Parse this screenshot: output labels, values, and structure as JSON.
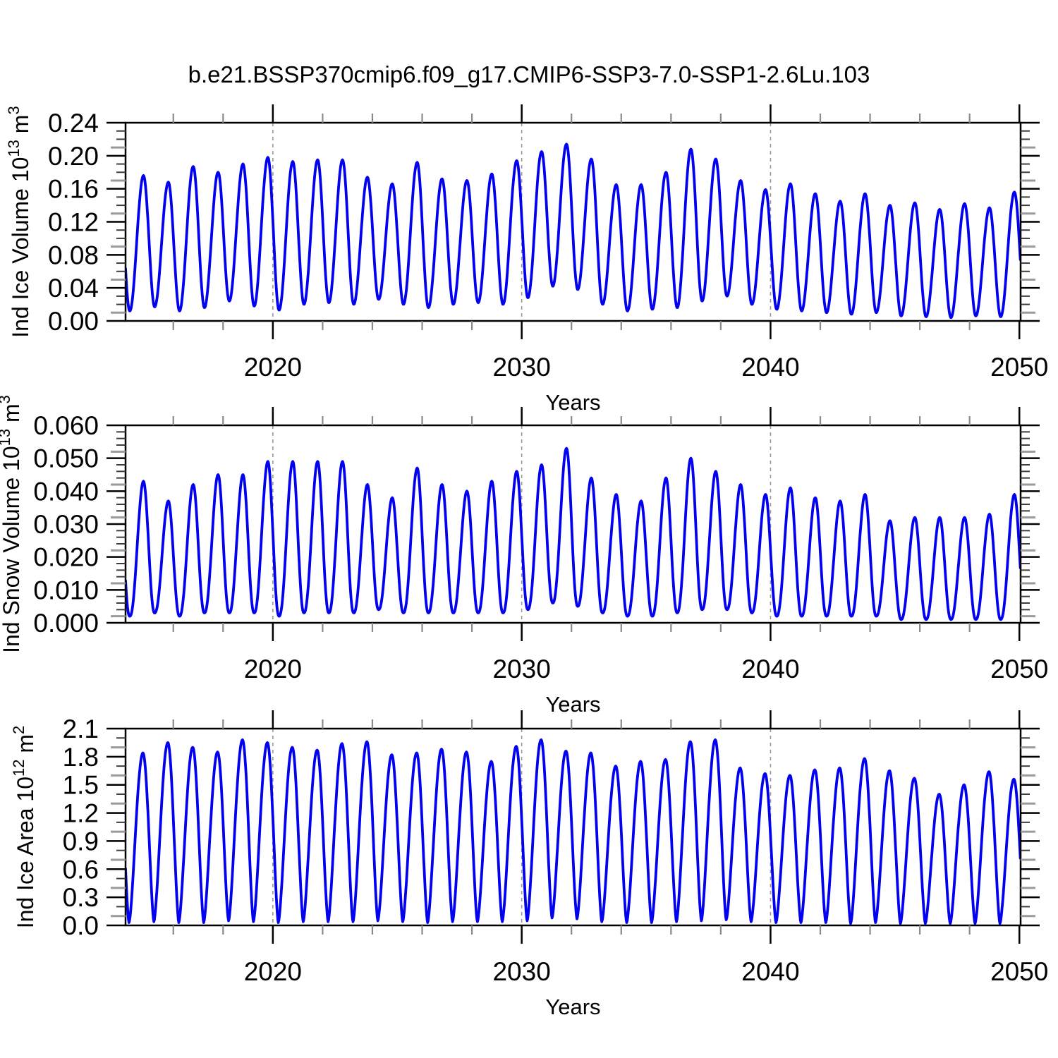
{
  "title": "b.e21.BSSP370cmip6.f09_g17.CMIP6-SSP3-7.0-SSP1-2.6Lu.103",
  "xlabel": "Years",
  "x_ticks": [
    "2020",
    "2030",
    "2040",
    "2050"
  ],
  "x_tick_values": [
    2020,
    2030,
    2040,
    2050
  ],
  "x_minor_step": 2,
  "gridline_years": [
    2020,
    2030,
    2040
  ],
  "colors": {
    "line": "#0202f0",
    "frame": "#000000",
    "minor_tick": "#3c3c3c",
    "gray_tick": "#9a9a9a",
    "x_minor_tick": "#8a8a8a",
    "gridline": "#999999",
    "text": "#000000"
  },
  "chart_data": [
    {
      "id": "ice-volume",
      "type": "line",
      "ylabel_plain": "Ind Ice Volume 10^13 m^3",
      "ylabel_parts": [
        {
          "t": "Ind Ice Volume 10",
          "sup": false
        },
        {
          "t": "13",
          "sup": true
        },
        {
          "t": " m",
          "sup": false
        },
        {
          "t": "3",
          "sup": true
        }
      ],
      "y_tick_labels": [
        "0.00",
        "0.04",
        "0.08",
        "0.12",
        "0.16",
        "0.20",
        "0.24"
      ],
      "ylim": [
        0.0,
        0.24
      ],
      "y_major": 0.04,
      "y_minor": 0.01,
      "xlim": [
        2014.08,
        2050.05
      ],
      "first_year": 2014,
      "peak_phase": 0.8,
      "min_phase": 0.25,
      "shape": 1.0,
      "peaks": [
        0.176,
        0.168,
        0.187,
        0.18,
        0.19,
        0.198,
        0.193,
        0.195,
        0.195,
        0.174,
        0.166,
        0.192,
        0.172,
        0.17,
        0.178,
        0.194,
        0.205,
        0.214,
        0.196,
        0.165,
        0.165,
        0.18,
        0.208,
        0.196,
        0.17,
        0.159,
        0.166,
        0.154,
        0.145,
        0.154,
        0.14,
        0.143,
        0.135,
        0.142,
        0.137,
        0.156
      ],
      "mins": [
        0.012,
        0.017,
        0.012,
        0.016,
        0.024,
        0.018,
        0.013,
        0.02,
        0.022,
        0.02,
        0.026,
        0.02,
        0.016,
        0.02,
        0.022,
        0.02,
        0.028,
        0.042,
        0.038,
        0.02,
        0.012,
        0.014,
        0.016,
        0.024,
        0.03,
        0.02,
        0.014,
        0.012,
        0.01,
        0.008,
        0.01,
        0.006,
        0.005,
        0.004,
        0.006,
        0.005,
        0.008
      ]
    },
    {
      "id": "snow-volume",
      "type": "line",
      "ylabel_plain": "Ind Snow Volume 10^13 m^3",
      "ylabel_parts": [
        {
          "t": "Ind Snow Volume 10",
          "sup": false
        },
        {
          "t": "13",
          "sup": true
        },
        {
          "t": " m",
          "sup": false
        },
        {
          "t": "3",
          "sup": true
        }
      ],
      "y_tick_labels": [
        "0.000",
        "0.010",
        "0.020",
        "0.030",
        "0.040",
        "0.050",
        "0.060"
      ],
      "ylim": [
        0.0,
        0.06
      ],
      "y_major": 0.01,
      "y_minor": 0.002,
      "xlim": [
        2014.08,
        2050.05
      ],
      "first_year": 2014,
      "peak_phase": 0.8,
      "min_phase": 0.25,
      "shape": 1.15,
      "peaks": [
        0.043,
        0.037,
        0.042,
        0.045,
        0.045,
        0.049,
        0.049,
        0.049,
        0.049,
        0.042,
        0.038,
        0.047,
        0.042,
        0.04,
        0.043,
        0.046,
        0.048,
        0.053,
        0.044,
        0.039,
        0.037,
        0.044,
        0.05,
        0.046,
        0.042,
        0.039,
        0.041,
        0.038,
        0.037,
        0.039,
        0.031,
        0.032,
        0.032,
        0.032,
        0.033,
        0.039
      ],
      "mins": [
        0.002,
        0.003,
        0.002,
        0.003,
        0.003,
        0.003,
        0.002,
        0.003,
        0.003,
        0.003,
        0.004,
        0.003,
        0.003,
        0.003,
        0.003,
        0.003,
        0.004,
        0.006,
        0.005,
        0.003,
        0.002,
        0.002,
        0.003,
        0.004,
        0.004,
        0.003,
        0.002,
        0.002,
        0.002,
        0.002,
        0.002,
        0.001,
        0.001,
        0.001,
        0.001,
        0.001,
        0.002
      ]
    },
    {
      "id": "ice-area",
      "type": "line",
      "ylabel_plain": "Ind Ice Area 10^12 m^2",
      "ylabel_parts": [
        {
          "t": "Ind Ice Area 10",
          "sup": false
        },
        {
          "t": "12",
          "sup": true
        },
        {
          "t": " m",
          "sup": false
        },
        {
          "t": "2",
          "sup": true
        }
      ],
      "y_tick_labels": [
        "0.0",
        "0.3",
        "0.6",
        "0.9",
        "1.2",
        "1.5",
        "1.8",
        "2.1"
      ],
      "ylim": [
        0.0,
        2.1
      ],
      "y_major": 0.3,
      "y_minor": 0.1,
      "xlim": [
        2014.08,
        2050.05
      ],
      "first_year": 2014,
      "peak_phase": 0.78,
      "min_phase": 0.22,
      "shape": 0.78,
      "peaks": [
        1.84,
        1.95,
        1.9,
        1.85,
        1.98,
        1.95,
        1.9,
        1.87,
        1.94,
        1.96,
        1.82,
        1.84,
        1.88,
        1.85,
        1.75,
        1.91,
        1.98,
        1.86,
        1.84,
        1.7,
        1.75,
        1.77,
        1.96,
        1.98,
        1.68,
        1.62,
        1.6,
        1.66,
        1.68,
        1.78,
        1.65,
        1.57,
        1.4,
        1.5,
        1.64,
        1.56
      ],
      "mins": [
        0.03,
        0.04,
        0.03,
        0.03,
        0.05,
        0.04,
        0.03,
        0.04,
        0.04,
        0.04,
        0.05,
        0.04,
        0.03,
        0.04,
        0.04,
        0.04,
        0.05,
        0.08,
        0.07,
        0.04,
        0.03,
        0.03,
        0.04,
        0.05,
        0.06,
        0.04,
        0.03,
        0.03,
        0.03,
        0.02,
        0.03,
        0.02,
        0.02,
        0.02,
        0.02,
        0.02,
        0.03
      ]
    }
  ]
}
